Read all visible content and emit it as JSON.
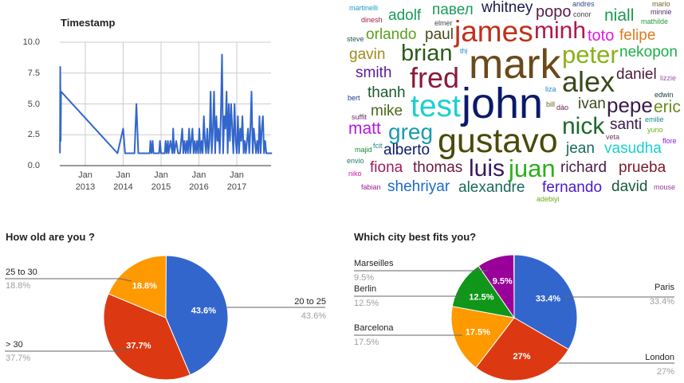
{
  "timestamp_chart": {
    "title": "Timestamp",
    "y_ticks": [
      "10.0",
      "7.5",
      "5.0",
      "2.5",
      "0.0"
    ],
    "x_ticks": [
      {
        "month": "Jan",
        "year": "2013"
      },
      {
        "month": "Jan",
        "year": "2014"
      },
      {
        "month": "Jan",
        "year": "2015"
      },
      {
        "month": "Jan",
        "year": "2016"
      },
      {
        "month": "Jan",
        "year": "2017"
      }
    ],
    "color": "#3366cc",
    "points": [
      [
        2012.33,
        1
      ],
      [
        2012.34,
        8
      ],
      [
        2012.35,
        2
      ],
      [
        2012.36,
        6
      ],
      [
        2013.85,
        1
      ],
      [
        2014.0,
        3
      ],
      [
        2014.05,
        1
      ],
      [
        2014.3,
        1
      ],
      [
        2014.35,
        5
      ],
      [
        2014.4,
        1
      ],
      [
        2014.7,
        1
      ],
      [
        2014.72,
        2
      ],
      [
        2014.75,
        1
      ],
      [
        2014.78,
        2
      ],
      [
        2014.8,
        1
      ],
      [
        2014.95,
        1
      ],
      [
        2014.97,
        2
      ],
      [
        2015.0,
        1
      ],
      [
        2015.1,
        1
      ],
      [
        2015.12,
        2
      ],
      [
        2015.15,
        1
      ],
      [
        2015.18,
        2
      ],
      [
        2015.2,
        1
      ],
      [
        2015.25,
        2
      ],
      [
        2015.3,
        1
      ],
      [
        2015.32,
        3
      ],
      [
        2015.35,
        1
      ],
      [
        2015.4,
        2
      ],
      [
        2015.45,
        1
      ]
    ],
    "dense": {
      "start": 2015.5,
      "step": 0.03,
      "values": [
        1,
        2,
        3,
        1,
        2,
        1,
        2,
        1,
        3,
        1,
        2,
        3,
        1,
        2,
        1,
        2,
        1,
        3,
        1,
        2,
        1,
        4,
        2,
        1,
        3,
        1,
        2,
        6,
        1,
        3,
        6,
        1,
        4,
        2,
        3,
        1,
        4,
        9,
        1,
        4,
        3,
        6,
        1,
        5,
        2,
        5,
        3,
        1,
        5,
        2,
        1,
        4,
        1,
        3,
        2,
        4,
        1,
        2,
        1,
        2,
        3,
        1,
        3,
        6,
        1,
        3,
        2,
        1,
        2,
        1,
        4,
        1,
        3,
        4,
        1,
        2,
        1,
        1,
        1,
        1,
        1,
        1
      ]
    }
  },
  "word_cloud": {
    "words": [
      {
        "text": "martinelli",
        "color": "#1a9fc0"
      },
      {
        "text": "dinesh",
        "color": "#a0204a"
      },
      {
        "text": "adolf",
        "color": "#1a9a5a"
      },
      {
        "text": "павел",
        "color": "#1a9a5a"
      },
      {
        "text": "elmer",
        "color": "#444444"
      },
      {
        "text": "conor",
        "color": "#444444"
      },
      {
        "text": "mario",
        "color": "#6a6a2a"
      },
      {
        "text": "andres",
        "color": "#2a4a8a"
      },
      {
        "text": "minnie",
        "color": "#5a2a6a"
      },
      {
        "text": "mathilde",
        "color": "#2a9a3a"
      },
      {
        "text": "minh",
        "color": "#b0184a"
      },
      {
        "text": "whitney",
        "color": "#1a1a4a"
      },
      {
        "text": "niall",
        "color": "#1a9a4a"
      },
      {
        "text": "steve",
        "color": "#1a5a5a"
      },
      {
        "text": "orlando",
        "color": "#5aa01a"
      },
      {
        "text": "paul",
        "color": "#4a4a1a"
      },
      {
        "text": "thị",
        "color": "#1a8ad0"
      },
      {
        "text": "james",
        "color": "#c0301a"
      },
      {
        "text": "popo",
        "color": "#5a1a4a"
      },
      {
        "text": "toto",
        "color": "#e01ae0"
      },
      {
        "text": "felipe",
        "color": "#e07a1a"
      },
      {
        "text": "gavin",
        "color": "#a08a1a"
      },
      {
        "text": "brian",
        "color": "#2a5a1a"
      },
      {
        "text": "peter",
        "color": "#8ab01a"
      },
      {
        "text": "nekopon",
        "color": "#1ab04a"
      },
      {
        "text": "mark",
        "color": "#6a4a1a"
      },
      {
        "text": "smith",
        "color": "#5a1a9a"
      },
      {
        "text": "fred",
        "color": "#8a1a3a"
      },
      {
        "text": "alex",
        "color": "#3a4a1a"
      },
      {
        "text": "daniel",
        "color": "#4a1a3a"
      },
      {
        "text": "lizzie",
        "color": "#9a5a9a"
      },
      {
        "text": "thanh",
        "color": "#1a5a2a"
      },
      {
        "text": "liza",
        "color": "#1a8ad0"
      },
      {
        "text": "ivan",
        "color": "#3a4a1a"
      },
      {
        "text": "bert",
        "color": "#1a3a8a"
      },
      {
        "text": "edwin",
        "color": "#1a3a3a"
      },
      {
        "text": "test",
        "color": "#1ad0d0"
      },
      {
        "text": "john",
        "color": "#0a1a6a"
      },
      {
        "text": "pepe",
        "color": "#3a1a4a"
      },
      {
        "text": "suffit",
        "color": "#6a2a6a"
      },
      {
        "text": "mike",
        "color": "#4a6a1a"
      },
      {
        "text": "emilie",
        "color": "#1a8a8a"
      },
      {
        "text": "eric",
        "color": "#6a8a1a"
      },
      {
        "text": "matt",
        "color": "#b01ae0"
      },
      {
        "text": "greg",
        "color": "#1a9ab0"
      },
      {
        "text": "fcit",
        "color": "#1a8a8a"
      },
      {
        "text": "bill",
        "color": "#6a6a1a"
      },
      {
        "text": "dào",
        "color": "#6a1a4a"
      },
      {
        "text": "adebiyi",
        "color": "#6ab01a"
      },
      {
        "text": "veta",
        "color": "#6a3a6a"
      },
      {
        "text": "nick",
        "color": "#1a6a2a"
      },
      {
        "text": "santi",
        "color": "#3a1a4a"
      },
      {
        "text": "yuno",
        "color": "#6ab01a"
      },
      {
        "text": "gustavo",
        "color": "#4a4a0a"
      },
      {
        "text": "flore",
        "color": "#8a1ae0"
      },
      {
        "text": "majid",
        "color": "#1a8a3a"
      },
      {
        "text": "alberto",
        "color": "#0a1a6a"
      },
      {
        "text": "jean",
        "color": "#1a6a5a"
      },
      {
        "text": "vasudha",
        "color": "#1ad0d0"
      },
      {
        "text": "envio",
        "color": "#1a7a6a"
      },
      {
        "text": "fiona",
        "color": "#a01a5a"
      },
      {
        "text": "thomas",
        "color": "#6a1a3a"
      },
      {
        "text": "luis",
        "color": "#3a1a5a"
      },
      {
        "text": "juan",
        "color": "#2ab01a"
      },
      {
        "text": "richard",
        "color": "#4a1a4a"
      },
      {
        "text": "prueba",
        "color": "#7a1a2a"
      },
      {
        "text": "niko",
        "color": "#d01aa0"
      },
      {
        "text": "fabian",
        "color": "#9a1a9a"
      },
      {
        "text": "shehriyar",
        "color": "#1a6ad0"
      },
      {
        "text": "alexandre",
        "color": "#1a6a5a"
      },
      {
        "text": "fernando",
        "color": "#4a1ad0"
      },
      {
        "text": "david",
        "color": "#1a5a3a"
      },
      {
        "text": "mouse",
        "color": "#9a3a9a"
      }
    ]
  },
  "age_chart": {
    "title": "How old are you ?",
    "slices": [
      {
        "label": "20 to 25",
        "value": 43.6,
        "text": "43.6%",
        "legend_pct": "43.6%",
        "color": "#3366cc"
      },
      {
        "label": "> 30",
        "value": 37.7,
        "text": "37.7%",
        "legend_pct": "37.7%",
        "color": "#dc3912"
      },
      {
        "label": "25 to 30",
        "value": 18.8,
        "text": "18.8%",
        "legend_pct": "18.8%",
        "color": "#ff9900"
      }
    ]
  },
  "city_chart": {
    "title": "Which city best fits you?",
    "slices": [
      {
        "label": "Paris",
        "value": 33.4,
        "text": "33.4%",
        "legend_pct": "33.4%",
        "color": "#3366cc"
      },
      {
        "label": "London",
        "value": 27,
        "text": "27%",
        "legend_pct": "27%",
        "color": "#dc3912"
      },
      {
        "label": "Barcelona",
        "value": 17.5,
        "text": "17.5%",
        "legend_pct": "17.5%",
        "color": "#ff9900"
      },
      {
        "label": "Berlin",
        "value": 12.5,
        "text": "12.5%",
        "legend_pct": "12.5%",
        "color": "#109618"
      },
      {
        "label": "Marseilles",
        "value": 9.5,
        "text": "9.5%",
        "legend_pct": "9.5%",
        "color": "#990099"
      }
    ]
  }
}
